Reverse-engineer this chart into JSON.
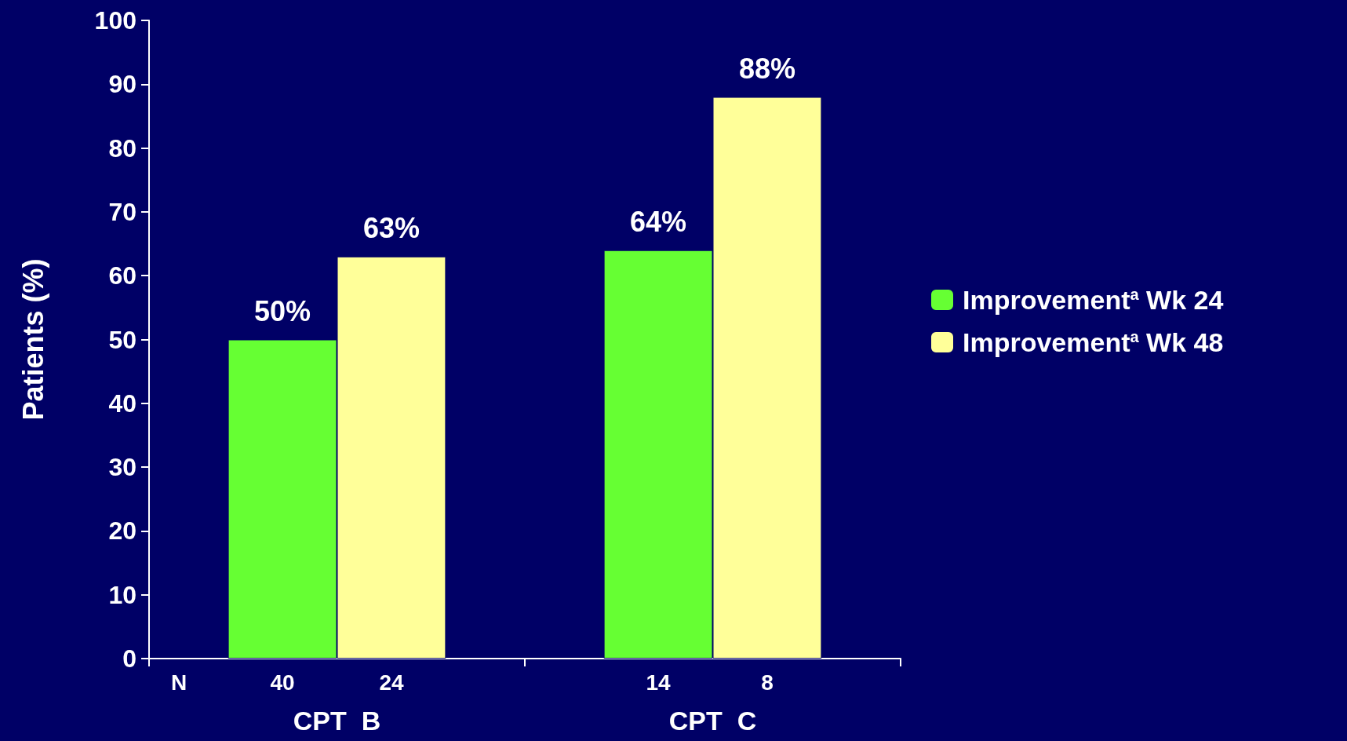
{
  "chart_data": {
    "type": "bar",
    "ylabel": "Patients (%)",
    "categories": [
      "CPT  B",
      "CPT  C"
    ],
    "series": [
      {
        "name": "Improvement$^{a}$ Wk 24",
        "color": "#66ff33",
        "values": [
          50,
          64
        ],
        "value_labels": [
          "50%",
          "64%"
        ]
      },
      {
        "name": "Improvement$^{a}$ Wk 48",
        "color": "#ffff99",
        "values": [
          63,
          88
        ],
        "value_labels": [
          "63%",
          "88%"
        ]
      }
    ],
    "ylim": [
      0,
      100
    ],
    "yticks": [
      0,
      10,
      20,
      30,
      40,
      50,
      60,
      70,
      80,
      90,
      100
    ],
    "grid": false,
    "legend": "right",
    "annotations": [
      "N",
      "40",
      "24",
      "14",
      "8"
    ]
  }
}
